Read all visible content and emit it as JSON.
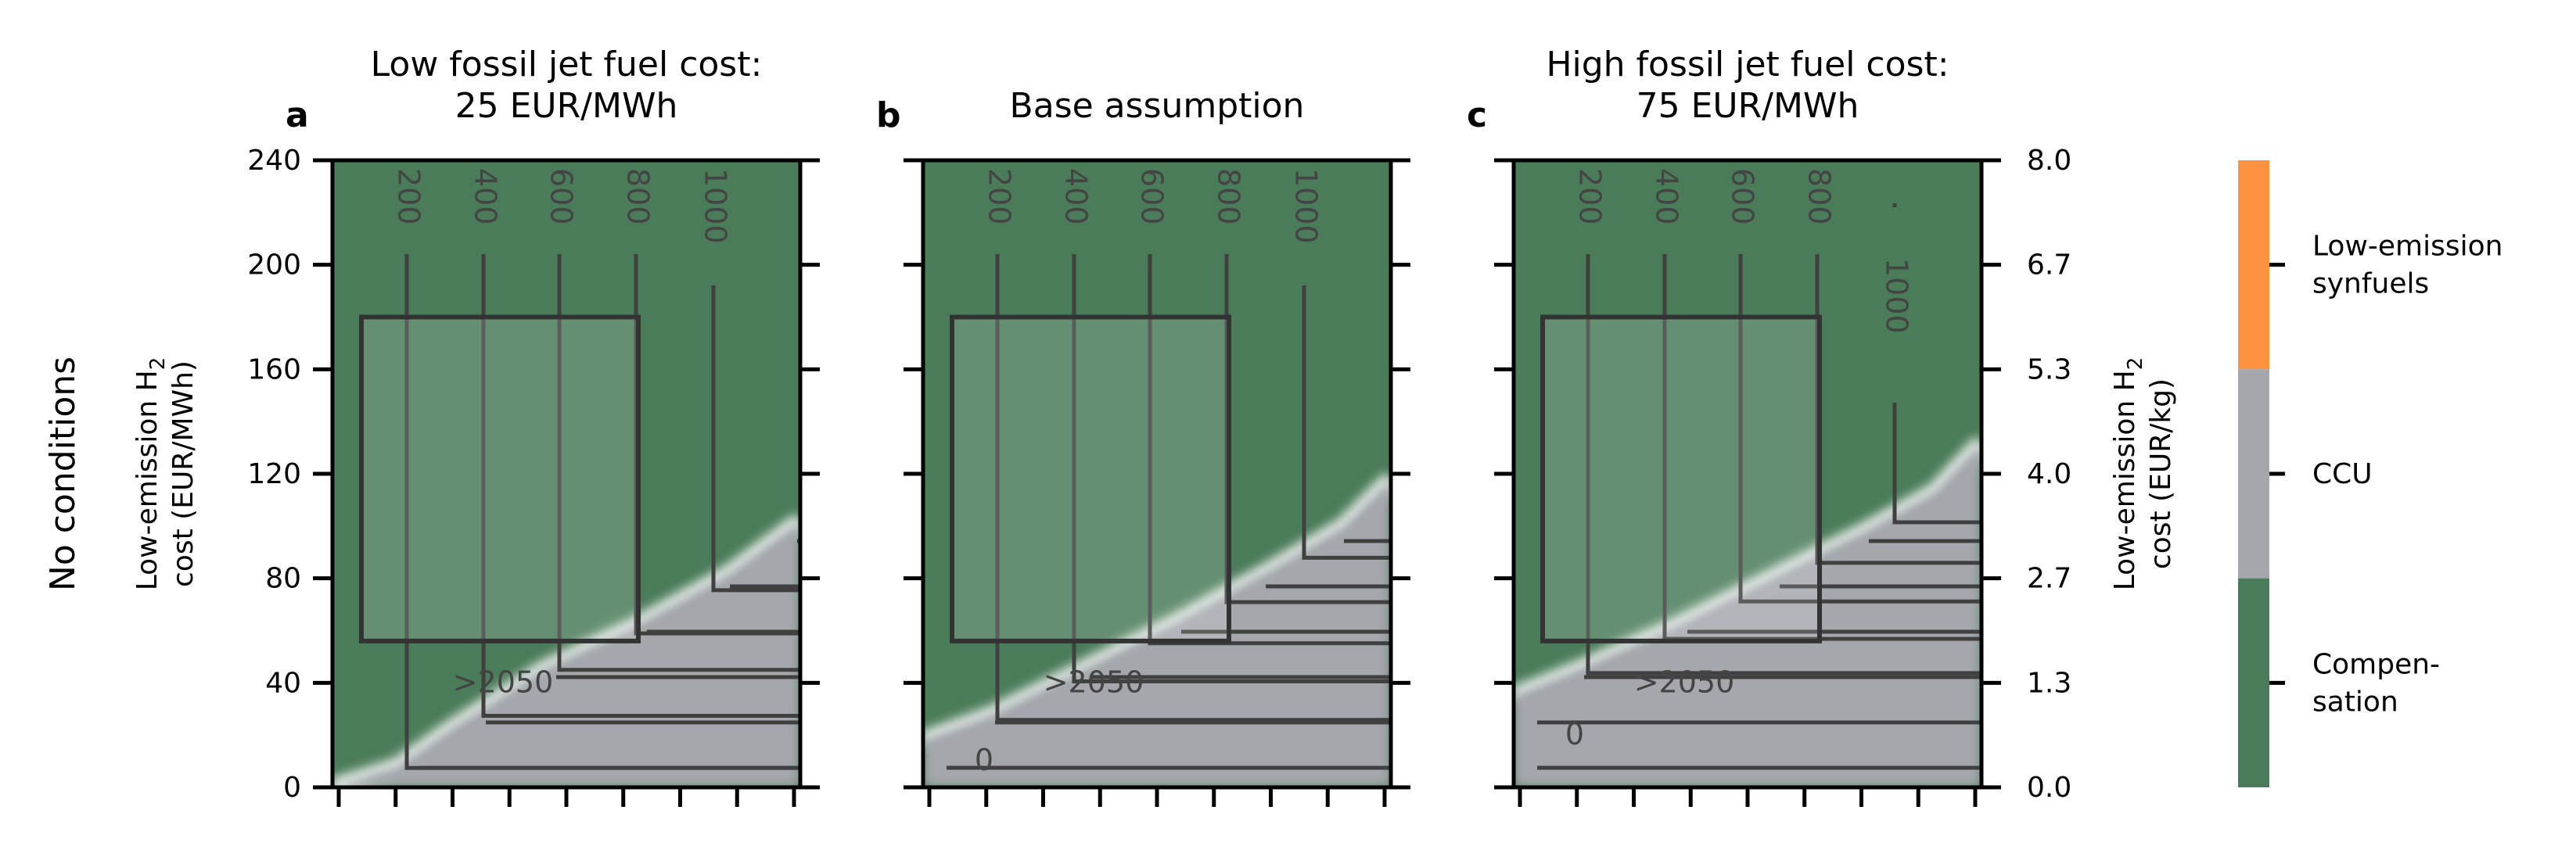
{
  "chart_data": {
    "type": "heatmap",
    "row_label": "No conditions",
    "ylabel_left": [
      "Low-emission H",
      "2",
      "cost (EUR/MWh)"
    ],
    "ylabel_right": [
      "Low-emission H",
      "2",
      "cost (EUR/kg)"
    ],
    "y_ticks": [
      0,
      40,
      80,
      120,
      160,
      200,
      240
    ],
    "ylim": [
      0,
      240
    ],
    "y_ticks_right": [
      "0.0",
      "1.3",
      "2.7",
      "4.0",
      "5.3",
      "6.7",
      "8.0"
    ],
    "x_ticks_count": 9,
    "categories": [
      {
        "name": "Low-emission synfuels",
        "label_lines": [
          "Low-emission",
          "synfuels"
        ],
        "color": "#fd9240"
      },
      {
        "name": "CCU",
        "label_lines": [
          "CCU"
        ],
        "color": "#a5a7ad"
      },
      {
        "name": "Compensation",
        "label_lines": [
          "Compen-",
          "sation"
        ],
        "color": "#4a7c59"
      }
    ],
    "panels": [
      {
        "letter": "a",
        "title_lines": [
          "Low fossil jet fuel cost:",
          "25 EUR/MWh"
        ],
        "boundary": [
          [
            0,
            0
          ],
          [
            0.14,
            8
          ],
          [
            0.25,
            22
          ],
          [
            0.45,
            45
          ],
          [
            0.65,
            62
          ],
          [
            0.85,
            82
          ],
          [
            1.0,
            102
          ]
        ],
        "contour_labels": [
          "200",
          "400",
          "600",
          "800",
          "1000",
          ">2050"
        ]
      },
      {
        "letter": "b",
        "title_lines": [
          "Base assumption"
        ],
        "boundary": [
          [
            0,
            18
          ],
          [
            0.15,
            28
          ],
          [
            0.35,
            46
          ],
          [
            0.55,
            64
          ],
          [
            0.75,
            84
          ],
          [
            0.9,
            100
          ],
          [
            1.0,
            118
          ]
        ],
        "contour_labels": [
          "200",
          "400",
          "600",
          "800",
          "1000",
          ">2050",
          "0"
        ]
      },
      {
        "letter": "c",
        "title_lines": [
          "High fossil jet fuel cost:",
          "75 EUR/MWh"
        ],
        "boundary": [
          [
            0,
            35
          ],
          [
            0.15,
            46
          ],
          [
            0.35,
            62
          ],
          [
            0.55,
            80
          ],
          [
            0.75,
            98
          ],
          [
            0.9,
            113
          ],
          [
            1.0,
            132
          ]
        ],
        "contour_labels": [
          "200",
          "400",
          "600",
          "800",
          "1000",
          ">2050",
          "0"
        ]
      }
    ]
  }
}
